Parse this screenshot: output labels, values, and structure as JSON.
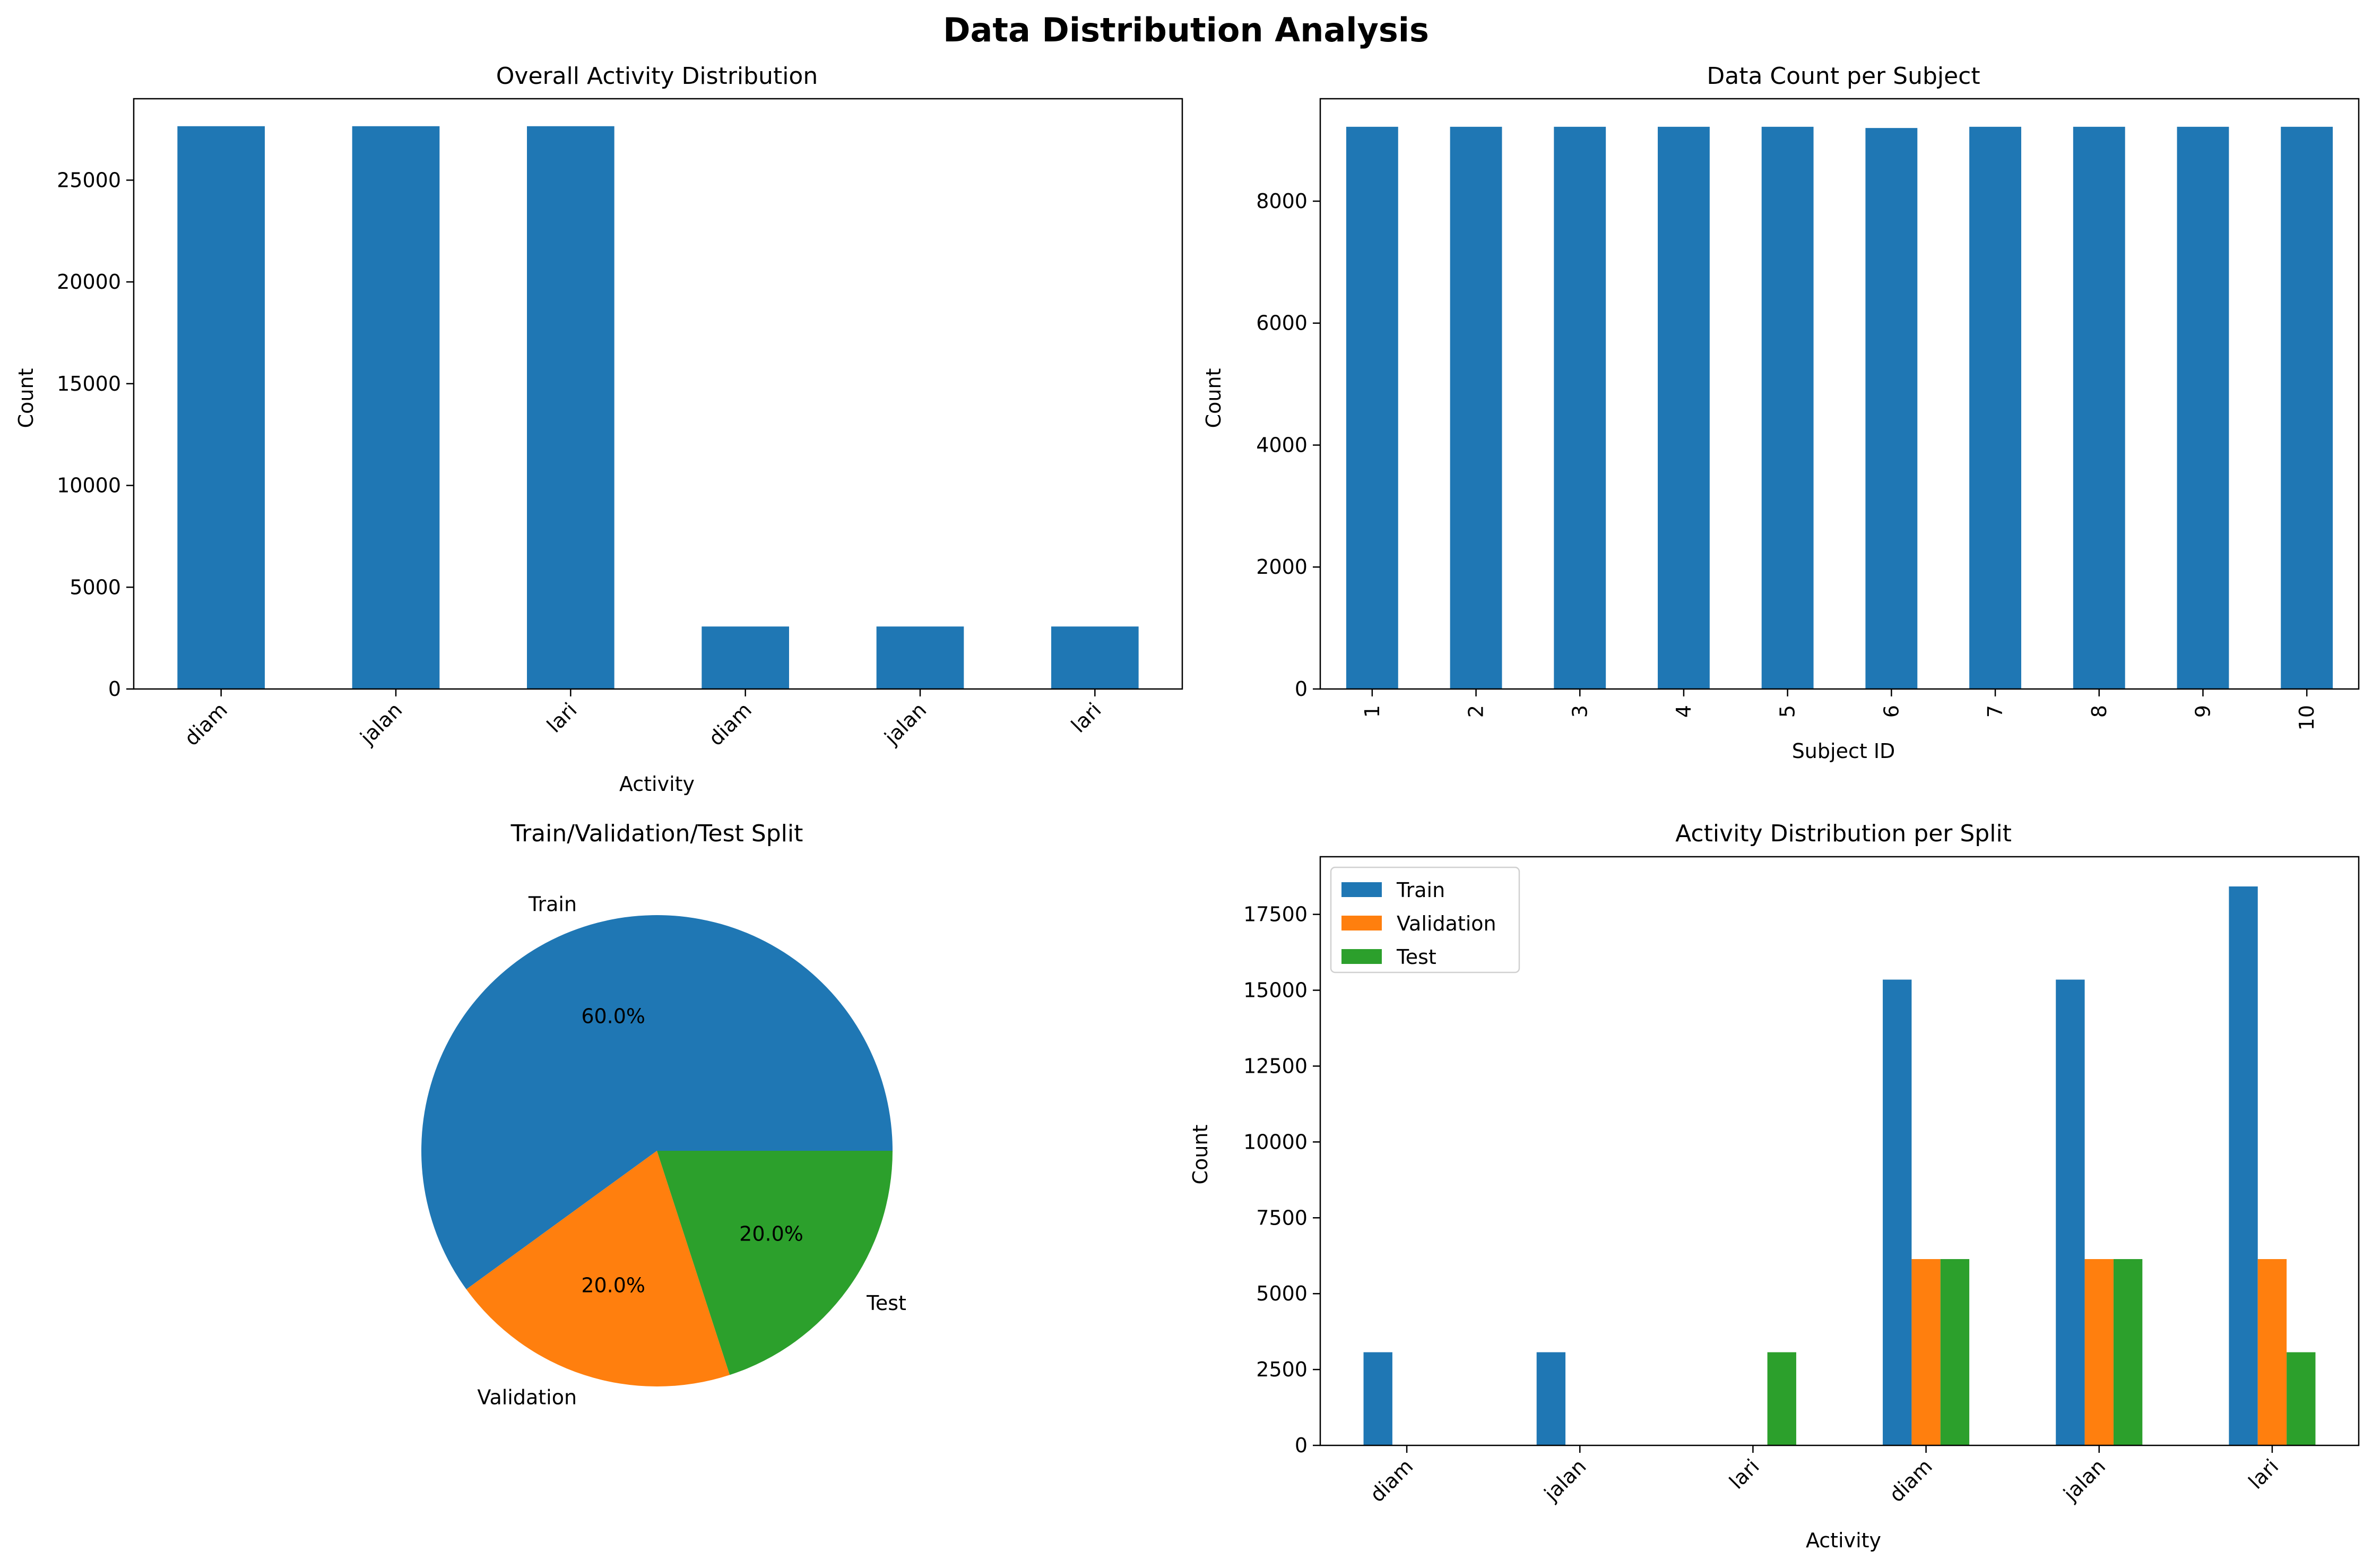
{
  "figure": {
    "suptitle": "Data Distribution Analysis"
  },
  "colors": {
    "train": "#1f77b4",
    "validation": "#ff7f0e",
    "test": "#2ca02c",
    "axis": "#000000"
  },
  "chart_data": [
    {
      "type": "bar",
      "title": "Overall Activity Distribution",
      "xlabel": "Activity",
      "ylabel": "Count",
      "categories": [
        "diam",
        "jalan",
        "lari",
        "diam",
        "jalan",
        "lari"
      ],
      "values": [
        27650,
        27650,
        27650,
        3070,
        3070,
        3070
      ],
      "ylim": [
        0,
        29000
      ],
      "yticks": [
        0,
        5000,
        10000,
        15000,
        20000,
        25000
      ],
      "tick_rotation": 45,
      "grid": false
    },
    {
      "type": "bar",
      "title": "Data Count per Subject",
      "xlabel": "Subject ID",
      "ylabel": "Count",
      "categories": [
        "1",
        "2",
        "3",
        "4",
        "5",
        "6",
        "7",
        "8",
        "9",
        "10"
      ],
      "values": [
        9220,
        9220,
        9220,
        9220,
        9220,
        9200,
        9220,
        9220,
        9220,
        9220
      ],
      "ylim": [
        0,
        9680
      ],
      "yticks": [
        0,
        2000,
        4000,
        6000,
        8000
      ],
      "tick_rotation": 90,
      "grid": false
    },
    {
      "type": "pie",
      "title": "Train/Validation/Test Split",
      "labels": [
        "Train",
        "Validation",
        "Test"
      ],
      "values": [
        60.0,
        20.0,
        20.0
      ],
      "autopct": [
        "60.0%",
        "20.0%",
        "20.0%"
      ]
    },
    {
      "type": "bar",
      "title": "Activity Distribution per Split",
      "xlabel": "Activity",
      "ylabel": "Count",
      "categories": [
        "diam",
        "jalan",
        "lari",
        "diam",
        "jalan",
        "lari"
      ],
      "series": [
        {
          "name": "Train",
          "values": [
            3070,
            3070,
            0,
            15350,
            15350,
            18420
          ]
        },
        {
          "name": "Validation",
          "values": [
            0,
            0,
            0,
            6140,
            6140,
            6140
          ]
        },
        {
          "name": "Test",
          "values": [
            0,
            0,
            3070,
            6140,
            6140,
            3070
          ]
        }
      ],
      "ylim": [
        0,
        19400
      ],
      "yticks": [
        0,
        2500,
        5000,
        7500,
        10000,
        12500,
        15000,
        17500
      ],
      "legend": "upper-left",
      "tick_rotation": 45,
      "grid": false
    }
  ]
}
